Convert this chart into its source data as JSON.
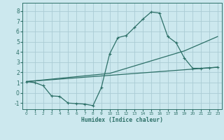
{
  "title": "",
  "xlabel": "Humidex (Indice chaleur)",
  "bg_color": "#cce8ee",
  "grid_color": "#aaccd4",
  "line_color": "#2d7068",
  "xlim": [
    -0.5,
    23.5
  ],
  "ylim": [
    -1.6,
    8.8
  ],
  "xticks": [
    0,
    1,
    2,
    3,
    4,
    5,
    6,
    7,
    8,
    9,
    10,
    11,
    12,
    13,
    14,
    15,
    16,
    17,
    18,
    19,
    20,
    21,
    22,
    23
  ],
  "yticks": [
    -1,
    0,
    1,
    2,
    3,
    4,
    5,
    6,
    7,
    8
  ],
  "line1_x": [
    0,
    1,
    2,
    3,
    4,
    5,
    6,
    7,
    8,
    9,
    10,
    11,
    12,
    13,
    14,
    15,
    16,
    17,
    18,
    19,
    20,
    21,
    22,
    23
  ],
  "line1_y": [
    1.1,
    1.0,
    0.7,
    -0.3,
    -0.35,
    -1.0,
    -1.05,
    -1.1,
    -1.25,
    0.5,
    3.8,
    5.4,
    5.6,
    6.4,
    7.2,
    7.9,
    7.8,
    5.5,
    4.9,
    3.4,
    2.4,
    2.4,
    2.45,
    2.5
  ],
  "line2_x": [
    0,
    23
  ],
  "line2_y": [
    1.1,
    2.5
  ],
  "line3_x": [
    0,
    10,
    19,
    23
  ],
  "line3_y": [
    1.1,
    1.9,
    4.1,
    5.5
  ]
}
